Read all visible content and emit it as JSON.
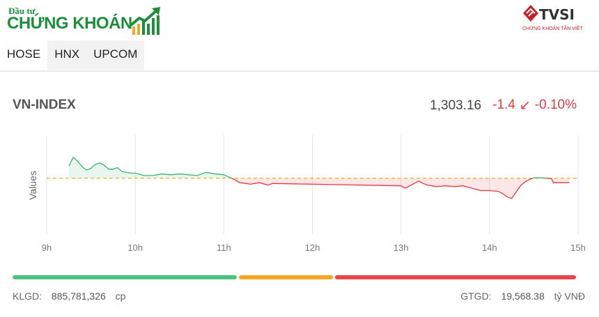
{
  "brand": {
    "logo_top": "Đầu tư",
    "logo_main": "CHỨNG KHOÁN",
    "sponsor_name": "TVSI",
    "sponsor_sub": "CHỨNG KHOÁN TÂN VIỆT",
    "green": "#1b8f3a",
    "red": "#c8202a"
  },
  "tabs": [
    {
      "label": "HOSE",
      "active": true
    },
    {
      "label": "HNX",
      "active": false
    },
    {
      "label": "UPCOM",
      "active": false
    }
  ],
  "index": {
    "name": "VN-INDEX",
    "value": "1,303.16",
    "change": "-1.4",
    "arrow": "↙",
    "percent": "-0.10%"
  },
  "chart_data": {
    "type": "area",
    "ylabel": "Values",
    "x_ticks": [
      "9h",
      "10h",
      "11h",
      "12h",
      "13h",
      "14h",
      "15h"
    ],
    "reference": 1304.56,
    "reference_line_color": "#f0a500",
    "up_color": "#3cb371",
    "down_color": "#e0393e",
    "ylim": [
      1297.5,
      1310
    ],
    "series": [
      {
        "x": [
          9.25,
          9.3,
          9.35,
          9.4,
          9.45,
          9.5,
          9.55,
          9.6,
          9.65,
          9.7,
          9.75,
          9.8,
          9.85,
          9.9,
          9.95,
          10.0,
          10.1,
          10.2,
          10.3,
          10.4,
          10.5,
          10.6,
          10.7,
          10.8,
          10.9,
          11.0,
          11.08,
          11.12,
          11.18,
          11.25,
          11.3,
          11.4,
          11.5,
          11.55,
          13.0,
          13.05,
          13.1,
          13.2,
          13.25,
          13.3,
          13.4,
          13.5,
          13.6,
          13.7,
          13.8,
          13.9,
          14.0,
          14.1,
          14.15,
          14.2,
          14.25,
          14.3,
          14.35,
          14.4,
          14.45,
          14.5,
          14.6,
          14.7,
          14.72,
          14.9
        ],
        "y": [
          1306.1,
          1307.2,
          1306.7,
          1306.0,
          1305.6,
          1305.8,
          1306.3,
          1306.5,
          1306.2,
          1305.7,
          1305.7,
          1305.9,
          1305.4,
          1305.3,
          1305.2,
          1305.2,
          1304.9,
          1304.9,
          1305.1,
          1305.0,
          1305.1,
          1305.0,
          1304.9,
          1305.3,
          1305.1,
          1305.0,
          1304.6,
          1304.4,
          1304.0,
          1303.9,
          1303.8,
          1304.0,
          1303.7,
          1303.9,
          1303.6,
          1303.3,
          1303.6,
          1304.2,
          1303.9,
          1303.7,
          1303.5,
          1303.6,
          1303.5,
          1303.6,
          1303.3,
          1303.0,
          1303.0,
          1302.9,
          1302.6,
          1302.2,
          1302.0,
          1302.8,
          1303.6,
          1304.1,
          1304.4,
          1304.6,
          1304.6,
          1304.5,
          1304.0,
          1304.0
        ]
      }
    ]
  },
  "breadth": [
    {
      "name": "up",
      "share": 0.4,
      "color": "#4cc47f"
    },
    {
      "name": "flat",
      "share": 0.17,
      "color": "#f5a623"
    },
    {
      "name": "down",
      "share": 0.43,
      "color": "#e8474a"
    }
  ],
  "footer": {
    "klgd_label": "KLGD:",
    "klgd_value": "885,781,326",
    "klgd_unit": "cp",
    "gtgd_label": "GTGD:",
    "gtgd_value": "19,568.38",
    "gtgd_unit": "tỷ VNĐ"
  }
}
